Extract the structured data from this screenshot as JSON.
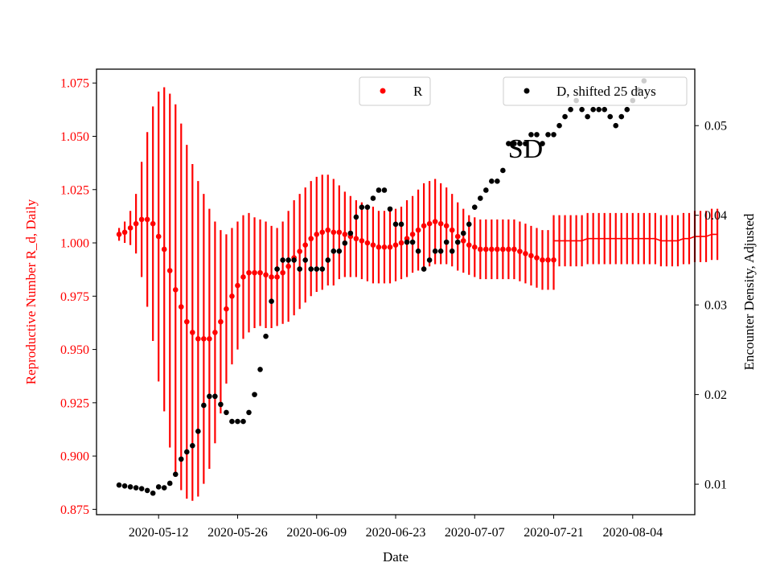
{
  "chart_data": {
    "type": "scatter",
    "title": "",
    "xlabel": "Date",
    "ylabel_left": "Reproductive Number R_d, Daily",
    "ylabel_right": "Encounter Density, Adjusted",
    "x_ticks": [
      "2020-05-12",
      "2020-05-26",
      "2020-06-09",
      "2020-06-23",
      "2020-07-07",
      "2020-07-21",
      "2020-08-04"
    ],
    "y_left_ticks": [
      "0.875",
      "0.900",
      "0.925",
      "0.950",
      "0.975",
      "1.000",
      "1.025",
      "1.050",
      "1.075"
    ],
    "y_right_ticks": [
      "0.01",
      "0.02",
      "0.03",
      "0.04",
      "0.05"
    ],
    "xlim": [
      "2020-05-01",
      "2020-08-15"
    ],
    "ylim_left": [
      0.8725,
      1.0815
    ],
    "ylim_right": [
      0.0066,
      0.0563
    ],
    "grid": false,
    "colors": {
      "R": "#ff0000",
      "D": "#000000",
      "axis_left": "#ff0000"
    },
    "legend_R": {
      "label": "R",
      "position": "top-center"
    },
    "legend_D": {
      "label": "D, shifted 25 days",
      "position": "top-right"
    },
    "annotation": {
      "text": "SD",
      "x": "2020-07-16",
      "y_left": 1.04
    },
    "series_R": {
      "name": "R",
      "start": "2020-05-05",
      "values": [
        1.004,
        1.005,
        1.007,
        1.009,
        1.011,
        1.011,
        1.009,
        1.003,
        0.997,
        0.987,
        0.978,
        0.97,
        0.963,
        0.958,
        0.955,
        0.955,
        0.955,
        0.958,
        0.963,
        0.969,
        0.975,
        0.98,
        0.984,
        0.986,
        0.986,
        0.986,
        0.985,
        0.984,
        0.984,
        0.986,
        0.989,
        0.993,
        0.996,
        0.999,
        1.002,
        1.004,
        1.005,
        1.006,
        1.005,
        1.005,
        1.004,
        1.003,
        1.002,
        1.001,
        1.0,
        0.999,
        0.998,
        0.998,
        0.998,
        0.999,
        1.0,
        1.002,
        1.004,
        1.006,
        1.008,
        1.009,
        1.01,
        1.009,
        1.008,
        1.006,
        1.003,
        1.001,
        0.999,
        0.998,
        0.997,
        0.997,
        0.997,
        0.997,
        0.997,
        0.997,
        0.997,
        0.996,
        0.995,
        0.994,
        0.993,
        0.992,
        0.992,
        0.992
      ],
      "error": [
        0.003,
        0.005,
        0.008,
        0.014,
        0.027,
        0.041,
        0.055,
        0.068,
        0.076,
        0.083,
        0.087,
        0.086,
        0.083,
        0.079,
        0.074,
        0.068,
        0.061,
        0.052,
        0.043,
        0.035,
        0.032,
        0.03,
        0.029,
        0.028,
        0.026,
        0.025,
        0.025,
        0.024,
        0.023,
        0.024,
        0.026,
        0.027,
        0.027,
        0.027,
        0.027,
        0.027,
        0.027,
        0.026,
        0.025,
        0.022,
        0.02,
        0.019,
        0.018,
        0.018,
        0.018,
        0.018,
        0.017,
        0.017,
        0.017,
        0.017,
        0.017,
        0.018,
        0.018,
        0.019,
        0.02,
        0.02,
        0.02,
        0.019,
        0.018,
        0.017,
        0.016,
        0.015,
        0.014,
        0.014,
        0.014,
        0.014,
        0.014,
        0.014,
        0.014,
        0.014,
        0.014,
        0.014,
        0.014,
        0.014,
        0.014,
        0.014,
        0.014,
        0.014
      ]
    },
    "series_R_line": {
      "start": "2020-07-21",
      "values": [
        1.001,
        1.001,
        1.001,
        1.001,
        1.001,
        1.001,
        1.002,
        1.002,
        1.002,
        1.002,
        1.002,
        1.002,
        1.002,
        1.002,
        1.002,
        1.002,
        1.002,
        1.002,
        1.002,
        1.001,
        1.001,
        1.001,
        1.001,
        1.002,
        1.002,
        1.003,
        1.003,
        1.003,
        1.004,
        1.004
      ],
      "error": [
        0.012,
        0.012,
        0.012,
        0.012,
        0.012,
        0.012,
        0.012,
        0.012,
        0.012,
        0.012,
        0.012,
        0.012,
        0.012,
        0.012,
        0.012,
        0.012,
        0.012,
        0.012,
        0.012,
        0.012,
        0.012,
        0.012,
        0.012,
        0.012,
        0.012,
        0.012,
        0.012,
        0.012,
        0.012,
        0.012
      ]
    },
    "series_D": {
      "name": "D, shifted 25 days",
      "start": "2020-05-05",
      "values": [
        0.0099,
        0.0098,
        0.0097,
        0.0096,
        0.0095,
        0.0093,
        0.009,
        0.0097,
        0.0096,
        0.0101,
        0.0111,
        0.0128,
        0.0136,
        0.0143,
        0.0159,
        0.0188,
        0.0198,
        0.0198,
        0.0189,
        0.018,
        0.017,
        0.017,
        0.017,
        0.018,
        0.02,
        0.0228,
        0.0265,
        0.0304,
        0.034,
        0.035,
        0.035,
        0.035,
        0.034,
        0.035,
        0.034,
        0.034,
        0.034,
        0.035,
        0.036,
        0.036,
        0.0369,
        0.038,
        0.0398,
        0.0409,
        0.0409,
        0.0419,
        0.0428,
        0.0428,
        0.0407,
        0.039,
        0.039,
        0.037,
        0.037,
        0.036,
        0.034,
        0.035,
        0.036,
        0.036,
        0.037,
        0.036,
        0.037,
        0.038,
        0.039,
        0.0409,
        0.0419,
        0.0428,
        0.0438,
        0.0438,
        0.045,
        0.048,
        0.048,
        0.048,
        0.048,
        0.049,
        0.049,
        0.048,
        0.049,
        0.049,
        0.05,
        0.051,
        0.0518,
        0.0528,
        0.0518,
        0.051,
        0.0518,
        0.0518,
        0.0518,
        0.051,
        0.05,
        0.051,
        0.0518,
        0.0528,
        0.054,
        0.055
      ]
    }
  }
}
